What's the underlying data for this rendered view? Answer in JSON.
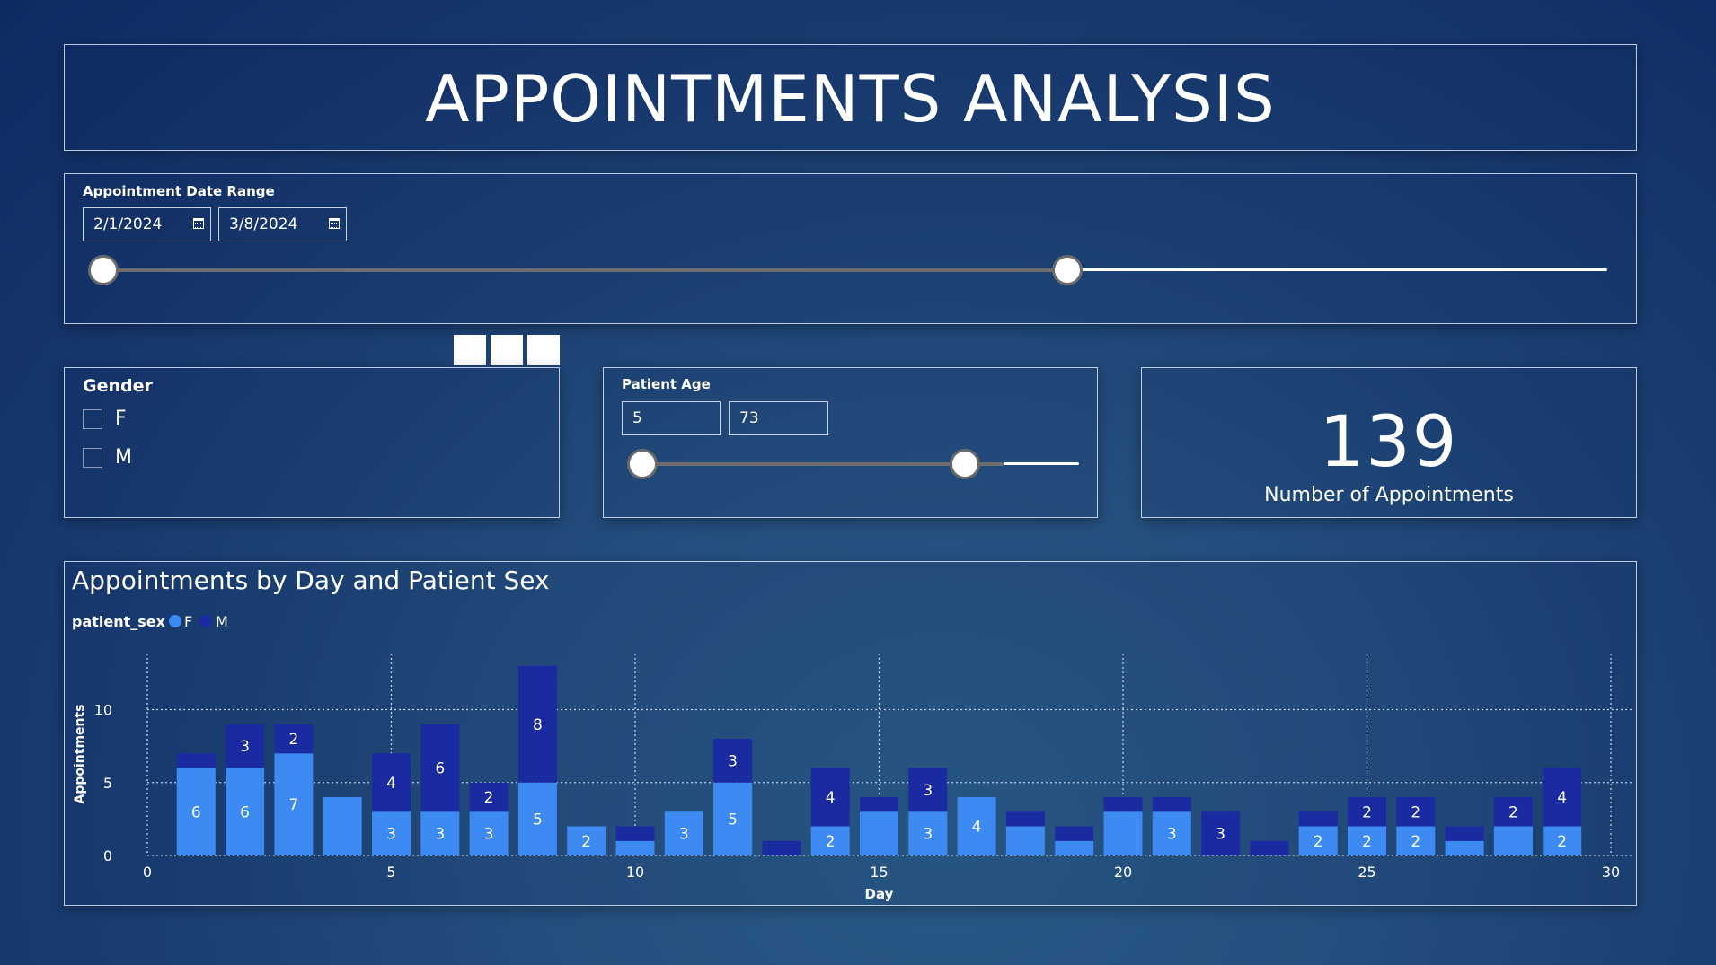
{
  "header": {
    "title": "APPOINTMENTS ANALYSIS"
  },
  "date_slicer": {
    "label": "Appointment Date Range",
    "start": "2/1/2024",
    "end": "3/8/2024",
    "selection": {
      "start_fraction": 0.0,
      "end_fraction": 0.635
    }
  },
  "gender_slicer": {
    "label": "Gender",
    "options": [
      {
        "label": "F",
        "checked": false
      },
      {
        "label": "M",
        "checked": false
      }
    ]
  },
  "age_slicer": {
    "label": "Patient Age",
    "min": "5",
    "max": "73",
    "selection": {
      "start_fraction": 0.0,
      "end_fraction": 0.755
    }
  },
  "kpi": {
    "value": "139",
    "label": "Number of Appointments"
  },
  "chart_data": {
    "type": "bar",
    "stacked": true,
    "title": "Appointments by Day and Patient Sex",
    "legend_title": "patient_sex",
    "legend_position": "top-left",
    "xlabel": "Day",
    "ylabel": "Appointments",
    "xlim": [
      0,
      30
    ],
    "ylim": [
      0,
      13
    ],
    "xticks": [
      0,
      5,
      10,
      15,
      20,
      25,
      30
    ],
    "yticks": [
      0,
      5,
      10
    ],
    "grid": true,
    "days": [
      1,
      2,
      3,
      4,
      5,
      6,
      7,
      8,
      9,
      10,
      11,
      12,
      13,
      14,
      15,
      16,
      17,
      18,
      19,
      20,
      21,
      22,
      23,
      24,
      25,
      26,
      27,
      28,
      29
    ],
    "series": [
      {
        "name": "F",
        "color": "#3c8af2",
        "values": [
          6,
          6,
          7,
          4,
          3,
          3,
          3,
          5,
          2,
          1,
          3,
          5,
          0,
          2,
          3,
          3,
          4,
          2,
          1,
          3,
          3,
          0,
          0,
          2,
          2,
          2,
          1,
          2,
          2
        ],
        "labels": [
          "6",
          "6",
          "7",
          "",
          "3",
          "3",
          "3",
          "5",
          "2",
          "",
          "3",
          "5",
          "",
          "2",
          "",
          "3",
          "4",
          "",
          "",
          "",
          "3",
          "",
          "",
          "2",
          "2",
          "2",
          "",
          "",
          "2"
        ]
      },
      {
        "name": "M",
        "color": "#1a2aa0",
        "values": [
          1,
          3,
          2,
          0,
          4,
          6,
          2,
          8,
          0,
          1,
          0,
          3,
          1,
          4,
          1,
          3,
          0,
          1,
          1,
          1,
          1,
          3,
          1,
          1,
          2,
          2,
          1,
          2,
          4
        ],
        "labels": [
          "",
          "3",
          "2",
          "",
          "4",
          "6",
          "2",
          "8",
          "",
          "",
          "",
          "3",
          "",
          "4",
          "",
          "3",
          "",
          "",
          "",
          "",
          "",
          "3",
          "",
          "",
          "2",
          "2",
          "",
          "2",
          "4"
        ]
      }
    ]
  }
}
